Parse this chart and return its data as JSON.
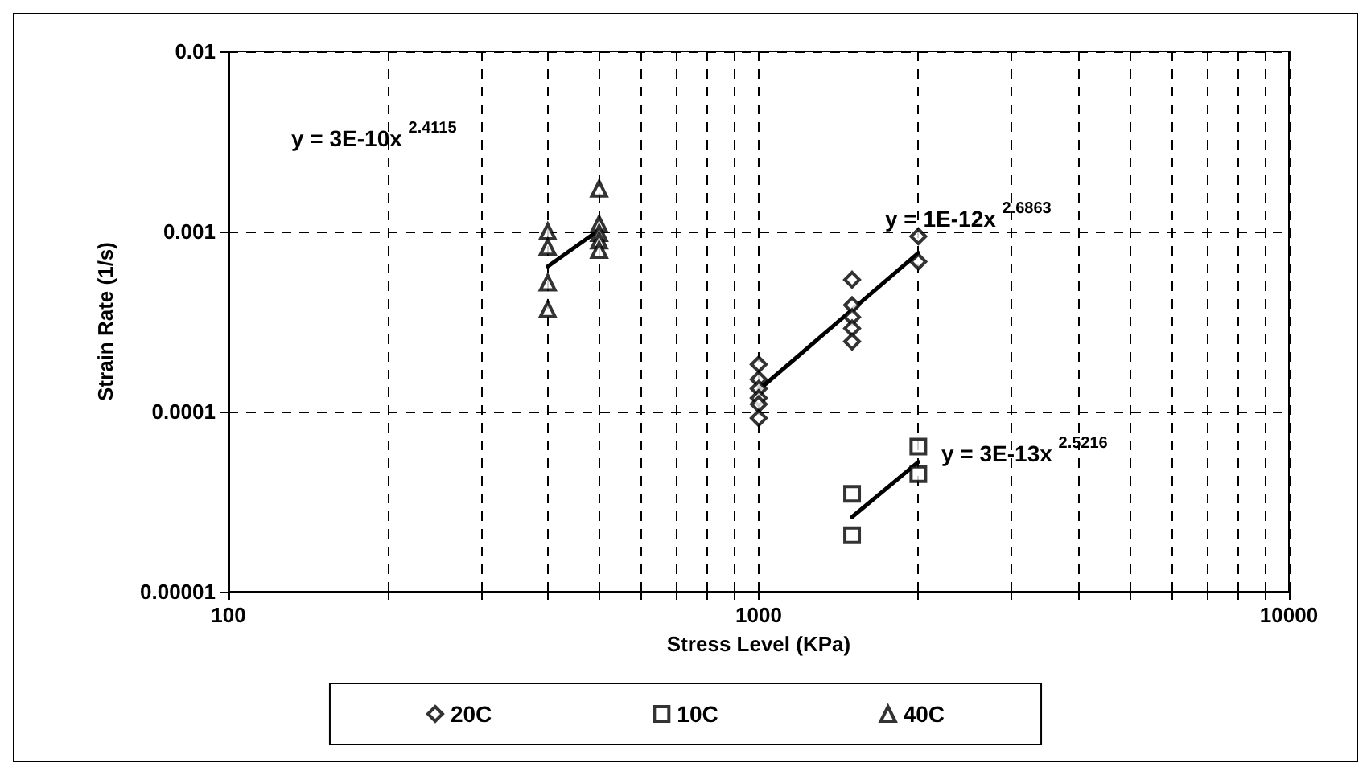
{
  "chart_data": {
    "type": "scatter",
    "xlabel": "Stress Level (KPa)",
    "ylabel": "Strain Rate (1/s)",
    "log": "xy",
    "xlim": [
      100,
      10000
    ],
    "ylim": [
      1e-05,
      0.01
    ],
    "xticks": [
      100,
      {
        "value": 200,
        "label": null
      },
      {
        "value": 300,
        "label": null
      },
      {
        "value": 400,
        "label": null
      },
      {
        "value": 500,
        "label": null
      },
      {
        "value": 600,
        "label": null
      },
      {
        "value": 700,
        "label": null
      },
      {
        "value": 800,
        "label": null
      },
      {
        "value": 900,
        "label": null
      },
      1000,
      {
        "value": 2000,
        "label": null
      },
      {
        "value": 3000,
        "label": null
      },
      {
        "value": 4000,
        "label": null
      },
      {
        "value": 5000,
        "label": null
      },
      {
        "value": 6000,
        "label": null
      },
      {
        "value": 7000,
        "label": null
      },
      {
        "value": 8000,
        "label": null
      },
      {
        "value": 9000,
        "label": null
      },
      10000
    ],
    "yticks": [
      {
        "value": 1e-05,
        "label": "0.00001"
      },
      0.0001,
      0.001,
      0.01
    ],
    "grid": true,
    "legend": "bottom",
    "series": [
      {
        "name": "20C",
        "color": "#000000",
        "marker": "diamond",
        "x": [
          1000,
          1000,
          1000,
          1000,
          1000,
          1000,
          1500,
          1500,
          1500,
          1500,
          1500,
          2000,
          2000
        ],
        "values": [
          0.000183,
          0.000151,
          0.000134,
          0.000119,
          0.00011,
          9.2e-05,
          0.00054,
          0.00039,
          0.000335,
          0.00029,
          0.000245,
          0.00094,
          0.00068
        ]
      },
      {
        "name": "10C",
        "color": "#000000",
        "marker": "square",
        "x": [
          1500,
          1500,
          2000,
          2000
        ],
        "values": [
          3.5e-05,
          2.06e-05,
          6.4e-05,
          4.5e-05
        ]
      },
      {
        "name": "40C",
        "color": "#000000",
        "marker": "triangle",
        "x": [
          400,
          400,
          400,
          400,
          500,
          500,
          500,
          500,
          500
        ],
        "values": [
          0.001,
          0.00082,
          0.00052,
          0.00037,
          0.00173,
          0.0011,
          0.00098,
          0.00089,
          0.00079
        ]
      },
      {
        "type": "line",
        "color": "#000000",
        "marker": "none",
        "x": [
          1000,
          2000
        ],
        "values": [
          0.000132,
          0.00076
        ]
      },
      {
        "type": "line",
        "color": "#000000",
        "marker": "none",
        "x": [
          1500,
          2000
        ],
        "values": [
          2.6e-05,
          5.25e-05
        ]
      },
      {
        "type": "line",
        "color": "#000000",
        "marker": "none",
        "x": [
          400,
          500
        ],
        "values": [
          0.00064,
          0.00102
        ]
      }
    ],
    "annotations": [
      "y = 3E-10x $^{2.4115}$",
      "y = 1E-12x $^{2.6863}$",
      "y = 3E-13x $^{2.5216}$"
    ]
  }
}
